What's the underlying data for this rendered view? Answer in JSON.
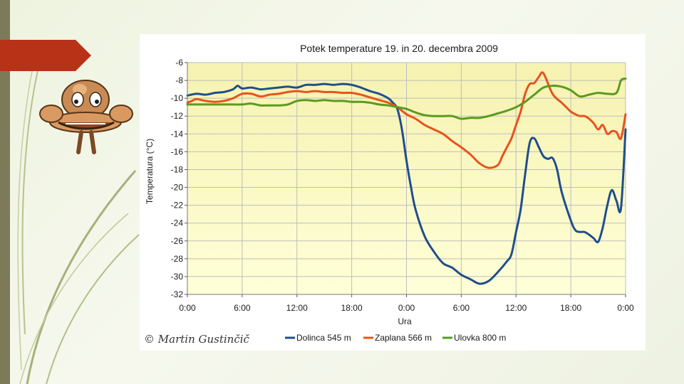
{
  "copyright": "© Martin Gustinčič",
  "colors": {
    "plot_bg_top": "#f6f2b0",
    "plot_bg_bottom": "#ffffd8",
    "grid": "#bdbdbd",
    "left_bar": "#7d7a5a",
    "arrow": "#b83218"
  },
  "icons": [
    "red-arrow-icon",
    "mascot-icon"
  ],
  "chart_data": {
    "type": "line",
    "title": "Potek temperature 19. in 20. decembra 2009",
    "xlabel": "Ura",
    "ylabel": "Temperatura (°C)",
    "xlim": [
      0,
      48
    ],
    "ylim": [
      -32,
      -6
    ],
    "y_ticks": [
      -6,
      -8,
      -10,
      -12,
      -14,
      -16,
      -18,
      -20,
      -22,
      -24,
      -26,
      -28,
      -30,
      -32
    ],
    "x_ticks": [
      0,
      6,
      12,
      18,
      24,
      30,
      36,
      42,
      48
    ],
    "x_tick_labels": [
      "0:00",
      "6:00",
      "12:00",
      "18:00",
      "0:00",
      "6:00",
      "12:00",
      "18:00",
      "0:00"
    ],
    "grid": true,
    "legend_position": "bottom",
    "series": [
      {
        "name": "Dolinca 545 m",
        "color": "#1f4e8c",
        "x": [
          0,
          1,
          2,
          3,
          4,
          5,
          5.5,
          6,
          7,
          8,
          9,
          10,
          11,
          12,
          13,
          14,
          15,
          16,
          17,
          18,
          19,
          20,
          21,
          22,
          22.5,
          23,
          23.5,
          24,
          24.5,
          25,
          26,
          27,
          28,
          29,
          30,
          31,
          32,
          33,
          34,
          35,
          35.5,
          36,
          36.5,
          37,
          37.5,
          38,
          38.5,
          39,
          39.5,
          40,
          40.5,
          41,
          42,
          42.5,
          43,
          43.5,
          44,
          44.5,
          45,
          45.5,
          46,
          46.5,
          47,
          47.5,
          48
        ],
        "y": [
          -9.7,
          -9.5,
          -9.6,
          -9.4,
          -9.3,
          -9.0,
          -8.6,
          -8.9,
          -8.8,
          -9.0,
          -8.9,
          -8.8,
          -8.7,
          -8.8,
          -8.5,
          -8.5,
          -8.4,
          -8.5,
          -8.4,
          -8.5,
          -8.8,
          -9.2,
          -9.5,
          -10.0,
          -10.5,
          -11.2,
          -13.5,
          -17.0,
          -20.0,
          -22.5,
          -25.5,
          -27.2,
          -28.5,
          -29.0,
          -29.8,
          -30.3,
          -30.8,
          -30.5,
          -29.5,
          -28.3,
          -27.5,
          -25.0,
          -22.5,
          -18.5,
          -15.0,
          -14.5,
          -15.5,
          -16.5,
          -16.8,
          -16.7,
          -18.0,
          -20.5,
          -23.7,
          -24.8,
          -25.0,
          -25.0,
          -25.3,
          -25.7,
          -26.1,
          -24.5,
          -22.0,
          -20.3,
          -21.5,
          -22.3,
          -13.5
        ]
      },
      {
        "name": "Zaplana 566 m",
        "color": "#e8531d",
        "x": [
          0,
          0.5,
          1,
          2,
          3,
          4,
          5,
          6,
          7,
          8,
          9,
          10,
          11,
          12,
          13,
          14,
          15,
          16,
          17,
          18,
          19,
          20,
          21,
          22,
          23,
          24,
          25,
          26,
          27,
          28,
          29,
          30,
          31,
          32,
          33,
          34,
          34.5,
          35,
          35.5,
          36,
          36.5,
          37,
          37.5,
          38,
          38.5,
          39,
          40,
          41,
          41.5,
          42,
          42.5,
          43,
          43.5,
          44,
          44.5,
          45,
          45.5,
          46,
          46.5,
          47,
          47.5,
          48
        ],
        "y": [
          -10.5,
          -10.3,
          -10.1,
          -10.3,
          -10.4,
          -10.3,
          -10.0,
          -9.5,
          -9.5,
          -9.8,
          -9.6,
          -9.5,
          -9.3,
          -9.2,
          -9.3,
          -9.2,
          -9.3,
          -9.3,
          -9.4,
          -9.4,
          -9.6,
          -9.9,
          -10.2,
          -10.5,
          -11.0,
          -11.8,
          -12.3,
          -13.0,
          -13.5,
          -14.0,
          -14.8,
          -15.5,
          -16.3,
          -17.3,
          -17.8,
          -17.5,
          -16.5,
          -15.5,
          -14.5,
          -13.0,
          -11.5,
          -9.5,
          -8.4,
          -8.3,
          -7.6,
          -7.2,
          -9.5,
          -10.5,
          -11.0,
          -11.5,
          -11.8,
          -12.0,
          -12.0,
          -12.3,
          -12.8,
          -13.5,
          -13.0,
          -14.0,
          -13.7,
          -13.8,
          -14.5,
          -11.8
        ]
      },
      {
        "name": "Ulovka 800 m",
        "color": "#5b9a1e",
        "x": [
          0,
          1,
          2,
          3,
          4,
          5,
          6,
          7,
          8,
          9,
          10,
          11,
          12,
          13,
          14,
          15,
          16,
          17,
          18,
          19,
          20,
          21,
          22,
          23,
          24,
          25,
          26,
          27,
          28,
          29,
          30,
          31,
          32,
          33,
          34,
          35,
          36,
          37,
          38,
          39,
          40,
          41,
          42,
          43,
          44,
          45,
          46,
          47,
          47.5,
          48
        ],
        "y": [
          -10.7,
          -10.7,
          -10.7,
          -10.7,
          -10.7,
          -10.7,
          -10.7,
          -10.6,
          -10.8,
          -10.8,
          -10.8,
          -10.7,
          -10.3,
          -10.2,
          -10.3,
          -10.2,
          -10.3,
          -10.3,
          -10.4,
          -10.4,
          -10.5,
          -10.7,
          -10.8,
          -11.0,
          -11.2,
          -11.6,
          -11.9,
          -12.0,
          -12.0,
          -12.0,
          -12.3,
          -12.2,
          -12.2,
          -12.0,
          -11.7,
          -11.4,
          -11.0,
          -10.4,
          -9.6,
          -8.8,
          -8.6,
          -8.7,
          -9.1,
          -9.8,
          -9.6,
          -9.4,
          -9.5,
          -9.4,
          -8.0,
          -7.8
        ]
      }
    ]
  }
}
